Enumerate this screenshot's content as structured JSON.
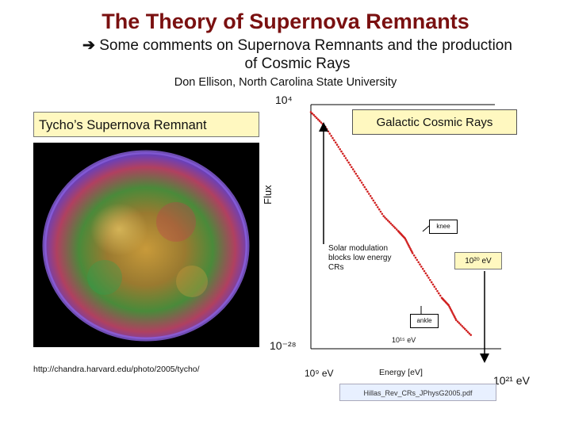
{
  "slide": {
    "title": "The Theory of Supernova Remnants",
    "subtitle_arrow": "➔",
    "subtitle": "Some comments on Supernova Remnants and the production of Cosmic Rays",
    "author": "Don Ellison,   North Carolina State University"
  },
  "image_panel": {
    "label": "Tycho’s Supernova Remnant",
    "credit_url": "http://chandra.harvard.edu/photo/2005/tycho/"
  },
  "plot": {
    "box_title": "Galactic Cosmic Rays",
    "y_label": "Flux",
    "y_top": "10⁴",
    "y_bottom": "10⁻²⁸",
    "x_left": "10⁹ eV",
    "x_right": "10²¹ eV",
    "x_label": "Energy [eV]",
    "knee_label": "knee",
    "ankle_label": "ankle",
    "solar_note": "Solar modulation blocks low energy CRs",
    "e15_label": "10¹⁵ eV",
    "e20_label": "10²⁰ eV",
    "citation": "Hillas_Rev_CRs_JPhysG2005.pdf"
  },
  "chart_data": {
    "type": "scatter",
    "title": "Galactic Cosmic Rays",
    "xlabel": "Energy [eV]",
    "ylabel": "Flux",
    "xscale": "log",
    "yscale": "log",
    "xlim": [
      1000000000.0,
      1e+21
    ],
    "ylim": [
      1e-28,
      10000.0
    ],
    "series": [
      {
        "x": [
          1000000000.0,
          10000000000.0,
          100000000000.0,
          1000000000000.0,
          10000000000000.0,
          100000000000000.0,
          1000000000000000.0,
          3000000000000000.0,
          1e+16,
          1e+17,
          1e+18,
          3e+18,
          1e+19,
          1e+20
        ],
        "y": [
          1000.0,
          10.0,
          0.01,
          1e-05,
          1e-08,
          1e-11,
          1e-13,
          1e-14,
          1e-16,
          1e-19,
          1e-22,
          1e-23,
          1e-25,
          1e-27
        ]
      }
    ],
    "colors": {
      "points": "#d02020"
    }
  },
  "colors": {
    "title": "#7a1010",
    "label_fill": "#fff8c0",
    "citation_fill": "#e8f0ff"
  }
}
